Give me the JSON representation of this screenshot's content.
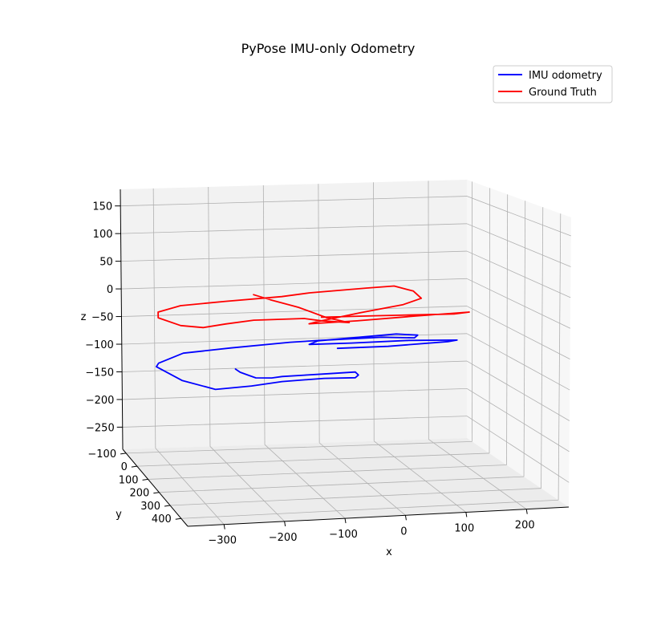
{
  "chart_data": {
    "type": "line",
    "projection": "3d",
    "title": "PyPose IMU-only Odometry",
    "xlabel": "x",
    "ylabel": "y",
    "zlabel": "z",
    "xlim": [
      -360,
      270
    ],
    "ylim": [
      -130,
      460
    ],
    "zlim": [
      -290,
      180
    ],
    "x_ticks": [
      "−300",
      "−200",
      "−100",
      "0",
      "100",
      "200"
    ],
    "y_ticks": [
      "−100",
      "0",
      "100",
      "200",
      "300",
      "400"
    ],
    "z_ticks": [
      "150",
      "100",
      "50",
      "0",
      "−50",
      "−100",
      "−150",
      "−200",
      "−250"
    ],
    "grid": true,
    "legend_position": "top-right",
    "series": [
      {
        "name": "IMU odometry",
        "color": "#0000ff",
        "points": [
          [
            -183,
            0,
            -125
          ],
          [
            -170,
            -20,
            -135
          ],
          [
            -150,
            -40,
            -145
          ],
          [
            -135,
            -50,
            -152
          ],
          [
            -110,
            -35,
            -150
          ],
          [
            -95,
            -20,
            -145
          ],
          [
            -60,
            0,
            -140
          ],
          [
            -20,
            20,
            -135
          ],
          [
            20,
            40,
            -130
          ],
          [
            25,
            42,
            -135
          ],
          [
            20,
            40,
            -140
          ],
          [
            -30,
            20,
            -143
          ],
          [
            -100,
            0,
            -150
          ],
          [
            -150,
            -20,
            -160
          ],
          [
            -210,
            -40,
            -168
          ],
          [
            -270,
            -40,
            -150
          ],
          [
            -320,
            -20,
            -120
          ],
          [
            -320,
            0,
            -110
          ],
          [
            -280,
            20,
            -90
          ],
          [
            -200,
            40,
            -80
          ],
          [
            -100,
            60,
            -70
          ],
          [
            -50,
            80,
            -65
          ],
          [
            50,
            100,
            -60
          ],
          [
            100,
            130,
            -58
          ],
          [
            100,
            150,
            -50
          ],
          [
            60,
            160,
            -45
          ],
          [
            -80,
            180,
            -48
          ],
          [
            -100,
            200,
            -50
          ],
          [
            -40,
            250,
            -42
          ],
          [
            40,
            320,
            -30
          ],
          [
            100,
            400,
            -20
          ],
          [
            90,
            380,
            -25
          ],
          [
            0,
            340,
            -35
          ],
          [
            -80,
            320,
            -38
          ]
        ]
      },
      {
        "name": "Ground Truth",
        "color": "#ff0000",
        "points": [
          [
            -150,
            0,
            5
          ],
          [
            -120,
            0,
            -5
          ],
          [
            -70,
            0,
            -20
          ],
          [
            -20,
            0,
            -40
          ],
          [
            20,
            0,
            -50
          ],
          [
            -30,
            0,
            -45
          ],
          [
            -60,
            0,
            -40
          ],
          [
            -150,
            0,
            -40
          ],
          [
            -200,
            0,
            -45
          ],
          [
            -240,
            0,
            -50
          ],
          [
            -280,
            0,
            -45
          ],
          [
            -320,
            0,
            -30
          ],
          [
            -320,
            0,
            -20
          ],
          [
            -280,
            0,
            -10
          ],
          [
            -200,
            0,
            -5
          ],
          [
            -100,
            0,
            0
          ],
          [
            -50,
            0,
            5
          ],
          [
            50,
            0,
            10
          ],
          [
            100,
            0,
            12
          ],
          [
            120,
            50,
            10
          ],
          [
            120,
            100,
            5
          ],
          [
            80,
            130,
            0
          ],
          [
            0,
            150,
            -8
          ],
          [
            -80,
            180,
            -15
          ],
          [
            -100,
            200,
            -15
          ],
          [
            -30,
            250,
            -5
          ],
          [
            50,
            320,
            10
          ],
          [
            120,
            400,
            25
          ],
          [
            100,
            380,
            20
          ],
          [
            50,
            360,
            18
          ],
          [
            -20,
            330,
            15
          ],
          [
            -100,
            290,
            10
          ]
        ]
      }
    ]
  }
}
